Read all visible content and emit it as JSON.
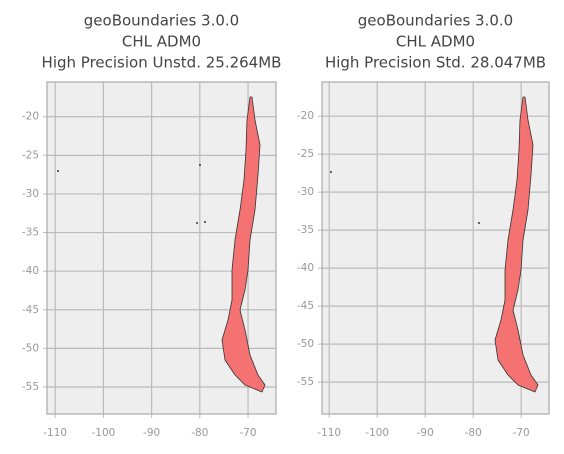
{
  "chart_data": [
    {
      "type": "map",
      "title": [
        "geoBoundaries 3.0.0",
        "CHL ADM0",
        "High Precision Unstd. 25.264MB"
      ],
      "xlim": [
        -111.7,
        -64.2
      ],
      "ylim": [
        -58.5,
        -15.5
      ],
      "xticks": [
        -110,
        -100,
        -90,
        -80,
        -70
      ],
      "yticks": [
        -20,
        -25,
        -30,
        -35,
        -40,
        -45,
        -50,
        -55
      ],
      "grid": true,
      "color": "#f47272",
      "background": "#eeeeee"
    },
    {
      "type": "map",
      "title": [
        "geoBoundaries 3.0.0",
        "CHL ADM0",
        "High Precision Std. 28.047MB"
      ],
      "xlim": [
        -111.5,
        -64.2
      ],
      "ylim": [
        -59.2,
        -15.5
      ],
      "xticks": [
        -110,
        -100,
        -90,
        -80,
        -70
      ],
      "yticks": [
        -20,
        -25,
        -30,
        -35,
        -40,
        -45,
        -50,
        -55
      ],
      "grid": true,
      "color": "#f47272",
      "background": "#eeeeee"
    }
  ]
}
